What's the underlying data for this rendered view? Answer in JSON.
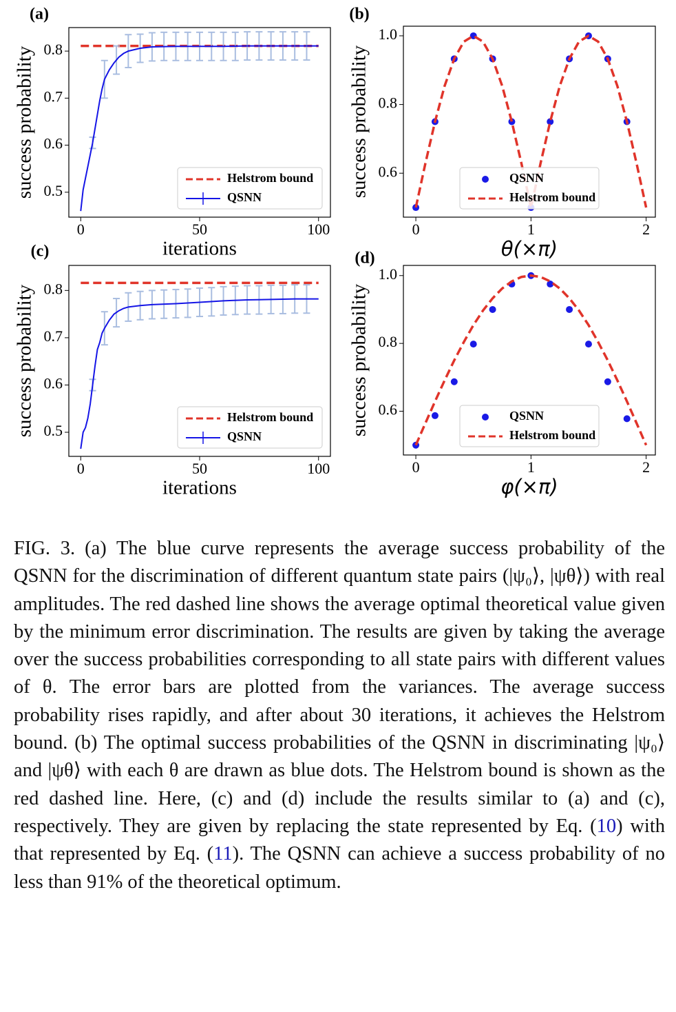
{
  "chart_data": [
    {
      "type": "line",
      "panel": "(a)",
      "xlabel": "iterations",
      "ylabel": "success probability",
      "xlim": [
        -5,
        105
      ],
      "ylim": [
        0.447,
        0.85
      ],
      "xticks": [
        0,
        50,
        100
      ],
      "yticks": [
        0.5,
        0.6,
        0.7,
        0.8
      ],
      "legend": "lower right",
      "series": [
        {
          "name": "Helstrom bound",
          "type": "line",
          "linestyle": "dashed",
          "color": "#e0342a",
          "x": [
            0,
            100
          ],
          "values": [
            0.811,
            0.811
          ]
        },
        {
          "name": "QSNN",
          "type": "line",
          "linestyle": "solid",
          "color": "#1414e6",
          "x": [
            0,
            1,
            2,
            3,
            4,
            5,
            6,
            7,
            8,
            9,
            10,
            12,
            14,
            16,
            18,
            20,
            25,
            30,
            40,
            50,
            60,
            70,
            80,
            90,
            100
          ],
          "values": [
            0.46,
            0.505,
            0.53,
            0.555,
            0.58,
            0.605,
            0.635,
            0.665,
            0.695,
            0.72,
            0.74,
            0.76,
            0.775,
            0.787,
            0.795,
            0.8,
            0.806,
            0.809,
            0.81,
            0.81,
            0.81,
            0.811,
            0.811,
            0.811,
            0.811
          ],
          "error_bars": {
            "color": "#a9bde0",
            "x": [
              5,
              10,
              15,
              20,
              25,
              30,
              35,
              40,
              45,
              50,
              55,
              60,
              65,
              70,
              75,
              80,
              85,
              90,
              95
            ],
            "values": [
              0.605,
              0.74,
              0.781,
              0.8,
              0.806,
              0.809,
              0.81,
              0.81,
              0.81,
              0.81,
              0.81,
              0.81,
              0.81,
              0.811,
              0.811,
              0.811,
              0.811,
              0.811,
              0.811
            ],
            "errors": [
              0.012,
              0.04,
              0.03,
              0.035,
              0.03,
              0.03,
              0.03,
              0.03,
              0.03,
              0.03,
              0.03,
              0.03,
              0.03,
              0.03,
              0.03,
              0.03,
              0.03,
              0.03,
              0.03
            ]
          }
        }
      ]
    },
    {
      "type": "line",
      "panel": "(b)",
      "xlabel": "θ(×π)",
      "ylabel": "success probability",
      "xlim": [
        -0.108,
        2.08
      ],
      "ylim": [
        0.472,
        1.028
      ],
      "xticks": [
        0,
        1,
        2
      ],
      "yticks": [
        0.6,
        0.8,
        {
          "value": 1,
          "label": "1.0"
        }
      ],
      "legend": "lower center",
      "series": [
        {
          "name": "QSNN",
          "type": "scatter",
          "color": "#1a1ae6",
          "x": [
            0,
            0.1667,
            0.3333,
            0.5,
            0.6667,
            0.8333,
            1,
            1.1667,
            1.3333,
            1.5,
            1.6667,
            1.8333
          ],
          "values": [
            0.5,
            0.75,
            0.933,
            1,
            0.933,
            0.75,
            0.5,
            0.75,
            0.933,
            1,
            0.933,
            0.75
          ]
        },
        {
          "name": "Helstrom bound",
          "type": "line",
          "linestyle": "dashed",
          "color": "#e0342a",
          "x": [
            0,
            0.0833,
            0.1667,
            0.25,
            0.3333,
            0.4167,
            0.5,
            0.5833,
            0.6667,
            0.75,
            0.8333,
            0.9167,
            1,
            1.0833,
            1.1667,
            1.25,
            1.3333,
            1.4167,
            1.5,
            1.5833,
            1.6667,
            1.75,
            1.8333,
            1.9167,
            2
          ],
          "values": [
            0.5,
            0.629,
            0.75,
            0.854,
            0.933,
            0.983,
            1,
            0.983,
            0.933,
            0.854,
            0.75,
            0.629,
            0.5,
            0.629,
            0.75,
            0.854,
            0.933,
            0.983,
            1,
            0.983,
            0.933,
            0.854,
            0.75,
            0.629,
            0.5
          ]
        }
      ]
    },
    {
      "type": "line",
      "panel": "(c)",
      "xlabel": "iterations",
      "ylabel": "success probability",
      "xlim": [
        -5,
        105
      ],
      "ylim": [
        0.449,
        0.853
      ],
      "xticks": [
        0,
        50,
        100
      ],
      "yticks": [
        0.5,
        0.6,
        0.7,
        0.8
      ],
      "legend": "lower right",
      "series": [
        {
          "name": "Helstrom bound",
          "type": "line",
          "linestyle": "dashed",
          "color": "#e0342a",
          "x": [
            0,
            100
          ],
          "values": [
            0.816,
            0.816
          ]
        },
        {
          "name": "QSNN",
          "type": "line",
          "linestyle": "solid",
          "color": "#1414e6",
          "x": [
            0,
            1,
            2,
            3,
            4,
            5,
            6,
            7,
            8,
            9,
            10,
            12,
            14,
            16,
            18,
            20,
            25,
            30,
            40,
            50,
            60,
            70,
            80,
            90,
            100
          ],
          "values": [
            0.465,
            0.5,
            0.51,
            0.53,
            0.56,
            0.6,
            0.64,
            0.675,
            0.69,
            0.71,
            0.72,
            0.737,
            0.75,
            0.757,
            0.762,
            0.765,
            0.768,
            0.77,
            0.772,
            0.775,
            0.778,
            0.78,
            0.781,
            0.782,
            0.782
          ],
          "error_bars": {
            "color": "#a9bde0",
            "x": [
              5,
              10,
              15,
              20,
              25,
              30,
              35,
              40,
              45,
              50,
              55,
              60,
              65,
              70,
              75,
              80,
              85,
              90,
              95
            ],
            "values": [
              0.6,
              0.72,
              0.753,
              0.765,
              0.768,
              0.77,
              0.771,
              0.772,
              0.773,
              0.775,
              0.776,
              0.778,
              0.779,
              0.78,
              0.78,
              0.781,
              0.781,
              0.782,
              0.782
            ],
            "errors": [
              0.012,
              0.035,
              0.03,
              0.03,
              0.03,
              0.03,
              0.03,
              0.03,
              0.03,
              0.03,
              0.03,
              0.03,
              0.03,
              0.03,
              0.03,
              0.03,
              0.03,
              0.03,
              0.03
            ]
          }
        }
      ]
    },
    {
      "type": "line",
      "panel": "(d)",
      "xlabel": "φ(×π)",
      "ylabel": "success probability",
      "xlim": [
        -0.108,
        2.08
      ],
      "ylim": [
        0.471,
        1.03
      ],
      "xticks": [
        0,
        1,
        2
      ],
      "yticks": [
        0.6,
        0.8,
        {
          "value": 1,
          "label": "1.0"
        }
      ],
      "legend": "lower center",
      "series": [
        {
          "name": "QSNN",
          "type": "scatter",
          "color": "#1a1ae6",
          "x": [
            0,
            0.1667,
            0.3333,
            0.5,
            0.6667,
            0.8333,
            1,
            1.1667,
            1.3333,
            1.5,
            1.6667,
            1.8333
          ],
          "values": [
            0.5,
            0.587,
            0.687,
            0.798,
            0.9,
            0.975,
            1,
            0.975,
            0.9,
            0.798,
            0.687,
            0.578
          ]
        },
        {
          "name": "Helstrom bound",
          "type": "line",
          "linestyle": "dashed",
          "color": "#e0342a",
          "x": [
            0,
            0.0833,
            0.1667,
            0.25,
            0.3333,
            0.4167,
            0.5,
            0.5833,
            0.6667,
            0.75,
            0.8333,
            0.9167,
            1,
            1.0833,
            1.1667,
            1.25,
            1.3333,
            1.4167,
            1.5,
            1.5833,
            1.6667,
            1.75,
            1.8333,
            1.9167,
            2
          ],
          "values": [
            0.5,
            0.565,
            0.629,
            0.691,
            0.75,
            0.804,
            0.854,
            0.897,
            0.933,
            0.962,
            0.983,
            0.996,
            1,
            0.996,
            0.983,
            0.962,
            0.933,
            0.897,
            0.854,
            0.804,
            0.75,
            0.691,
            0.629,
            0.565,
            0.5
          ]
        }
      ]
    }
  ],
  "caption": {
    "label": "FIG. 3.",
    "parts": [
      {
        "text": "(a) The blue curve represents the average success probability of the QSNN for the discrimination of different quantum state pairs (|ψ₀⟩, |ψθ⟩) with real amplitudes. The red dashed line shows the average optimal theoretical value given by the minimum error discrimination. The results are given by taking the average over the success probabilities corresponding to all state pairs with different values of θ. The error bars are plotted from the variances. The average success probability rises rapidly, and after about 30 iterations, it achieves the Helstrom bound. (b) The optimal success probabilities of the QSNN in discriminating |ψ₀⟩ and |ψθ⟩ with each θ are drawn as blue dots. The Helstrom bound is shown as the red dashed line. Here, (c) and (d) include the results similar to (a) and (c), respectively. They are given by replacing the state represented by Eq. ("
      },
      {
        "text": "10",
        "ref": true
      },
      {
        "text": ") with that represented by Eq. ("
      },
      {
        "text": "11",
        "ref": true
      },
      {
        "text": "). The QSNN can achieve a success probability of no less than 91% of the theoretical optimum."
      }
    ]
  }
}
